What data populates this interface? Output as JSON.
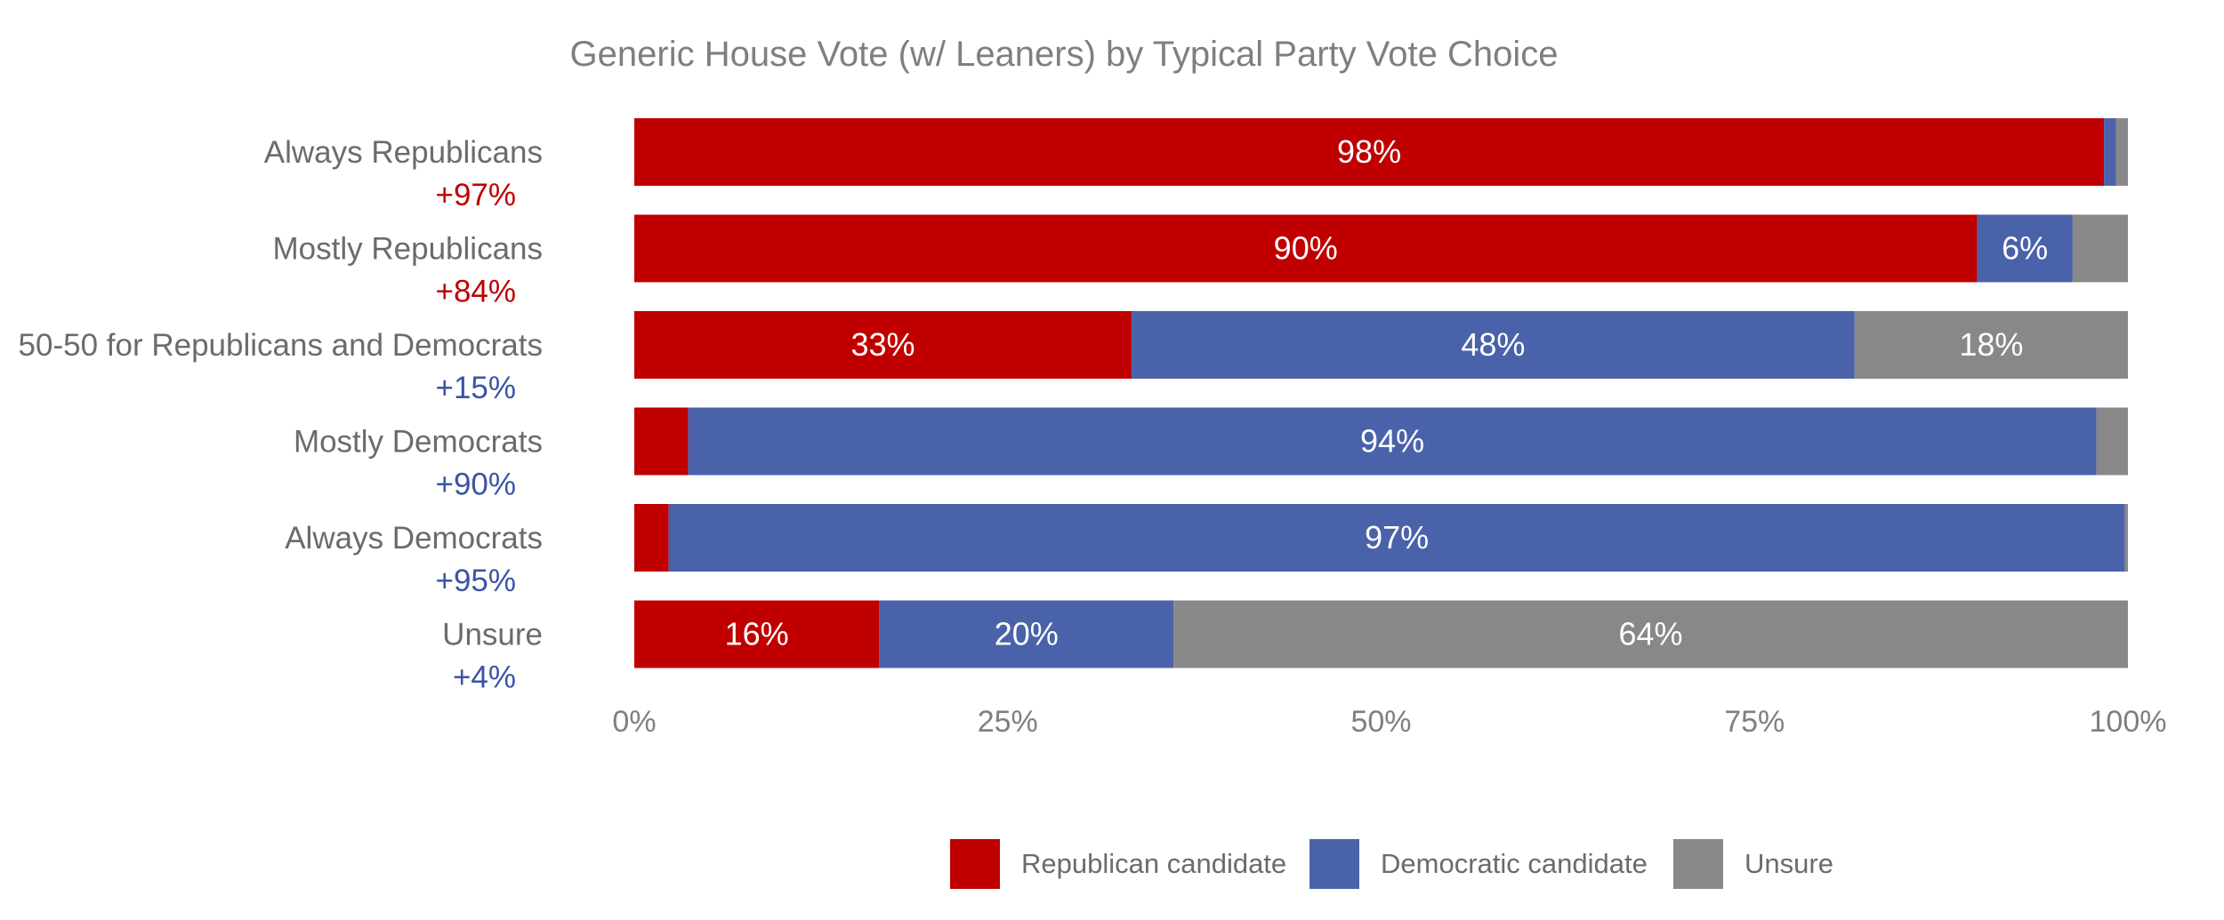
{
  "chart_data": {
    "type": "bar",
    "orientation": "horizontal",
    "stacked": true,
    "title": "Generic House Vote (w/ Leaners) by Typical Party Vote Choice",
    "xlabel": "",
    "ylabel": "",
    "xlim": [
      0,
      100
    ],
    "x_ticks": [
      "0%",
      "25%",
      "50%",
      "75%",
      "100%"
    ],
    "x_tick_values": [
      0,
      25,
      50,
      75,
      100
    ],
    "grid": false,
    "legend_position": "bottom",
    "categories": [
      "Always Republicans",
      "Mostly Republicans",
      "50-50 for Republicans and Democrats",
      "Mostly Democrats",
      "Always Democrats",
      "Unsure"
    ],
    "margins": [
      {
        "text": "+97%",
        "party": "republican"
      },
      {
        "text": "+84%",
        "party": "republican"
      },
      {
        "text": "+15%",
        "party": "democratic"
      },
      {
        "text": "+90%",
        "party": "democratic"
      },
      {
        "text": "+95%",
        "party": "democratic"
      },
      {
        "text": "+4%",
        "party": "democratic"
      }
    ],
    "series": [
      {
        "name": "Republican candidate",
        "color": "#c00000",
        "values": [
          98.4,
          89.9,
          33.3,
          3.6,
          2.3,
          16.4
        ],
        "labels": [
          "98%",
          "90%",
          "33%",
          "",
          "",
          "16%"
        ]
      },
      {
        "name": "Democratic candidate",
        "color": "#4a62a9",
        "values": [
          0.8,
          6.4,
          48.4,
          94.3,
          97.5,
          19.7
        ],
        "labels": [
          "",
          "6%",
          "48%",
          "94%",
          "97%",
          "20%"
        ]
      },
      {
        "name": "Unsure",
        "color": "#888888",
        "values": [
          0.8,
          3.7,
          18.3,
          2.1,
          0.2,
          63.9
        ],
        "labels": [
          "",
          "",
          "18%",
          "",
          "",
          "64%"
        ]
      }
    ],
    "colors": {
      "republican_text": "#c00000",
      "democratic_text": "#3a55a4"
    }
  }
}
